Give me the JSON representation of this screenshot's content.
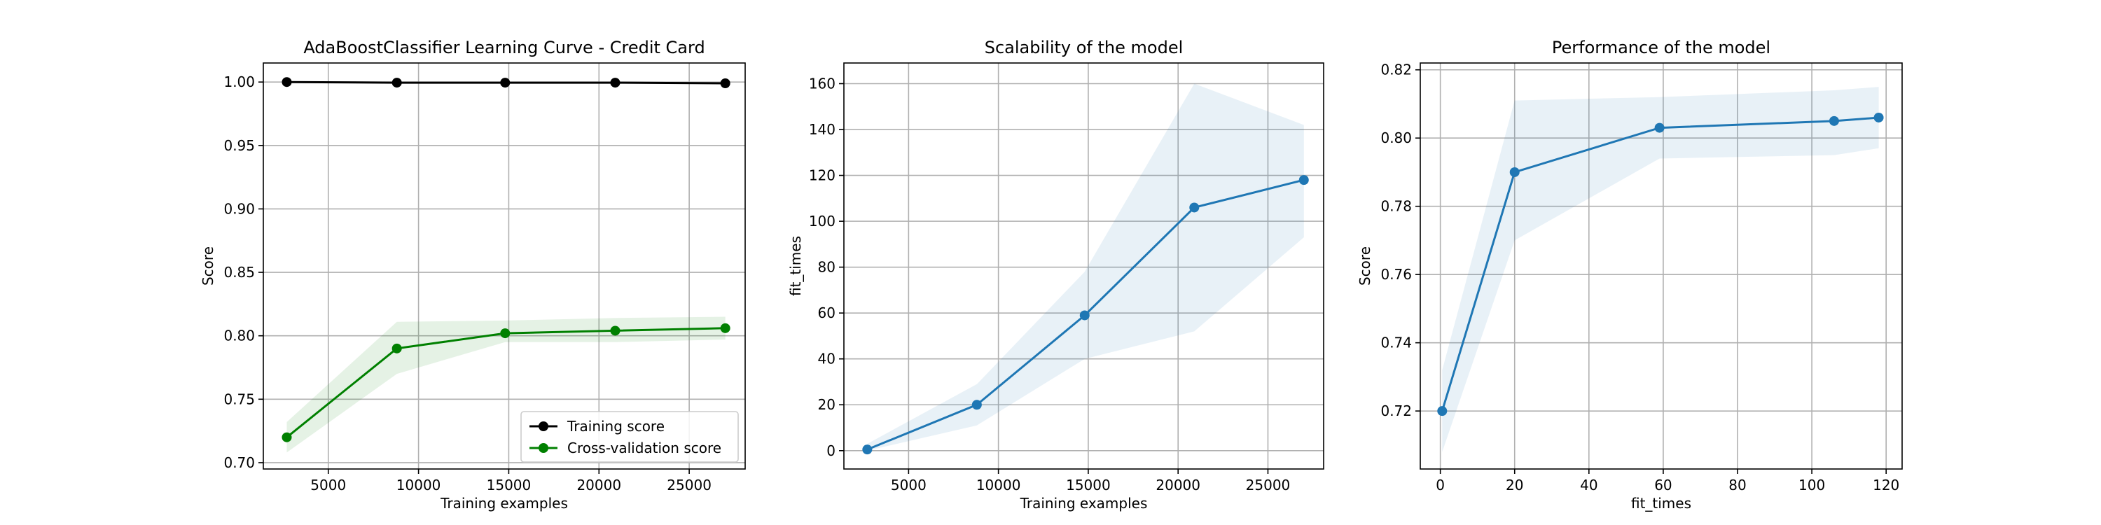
{
  "chart_data": [
    {
      "type": "line",
      "title": "AdaBoostClassifier Learning Curve - Credit Card",
      "xlabel": "Training examples",
      "ylabel": "Score",
      "xlim": [
        1400,
        28100
      ],
      "ylim": [
        0.695,
        1.015
      ],
      "xticks": [
        5000,
        10000,
        15000,
        20000,
        25000
      ],
      "yticks": [
        0.7,
        0.75,
        0.8,
        0.85,
        0.9,
        0.95,
        1.0
      ],
      "ytick_decimals": 2,
      "grid": true,
      "legend_position": "lower-right",
      "x": [
        2700,
        8800,
        14800,
        20900,
        27000
      ],
      "series": [
        {
          "name": "Training score",
          "color": "#000000",
          "values": [
            1.0,
            0.9995,
            0.9995,
            0.9995,
            0.999
          ],
          "band_lower": [
            0.9998,
            0.9993,
            0.9993,
            0.9993,
            0.9988
          ],
          "band_upper": [
            1.0002,
            0.9997,
            0.9997,
            0.9997,
            0.9992
          ],
          "band_color": "#808080"
        },
        {
          "name": "Cross-validation score",
          "color": "#008000",
          "values": [
            0.72,
            0.79,
            0.802,
            0.804,
            0.806
          ],
          "band_lower": [
            0.708,
            0.77,
            0.795,
            0.795,
            0.797
          ],
          "band_upper": [
            0.732,
            0.811,
            0.812,
            0.814,
            0.815
          ],
          "band_color": "#008000"
        }
      ]
    },
    {
      "type": "line",
      "title": "Scalability of the model",
      "xlabel": "Training examples",
      "ylabel": "fit_times",
      "xlim": [
        1400,
        28100
      ],
      "ylim": [
        -8,
        169
      ],
      "xticks": [
        5000,
        10000,
        15000,
        20000,
        25000
      ],
      "yticks": [
        0,
        20,
        40,
        60,
        80,
        100,
        120,
        140,
        160
      ],
      "ytick_decimals": 0,
      "grid": true,
      "x": [
        2700,
        8800,
        14800,
        20900,
        27000
      ],
      "series": [
        {
          "color": "#1f77b4",
          "values": [
            0.5,
            20,
            59,
            106,
            118
          ],
          "band_lower": [
            0,
            11,
            40,
            52,
            93
          ],
          "band_upper": [
            3,
            29,
            78,
            160,
            142
          ],
          "band_color": "#1f77b4"
        }
      ]
    },
    {
      "type": "line",
      "title": "Performance of the model",
      "xlabel": "fit_times",
      "ylabel": "Score",
      "xlim": [
        -5.4,
        124.3
      ],
      "ylim": [
        0.703,
        0.822
      ],
      "xticks": [
        0,
        20,
        40,
        60,
        80,
        100,
        120
      ],
      "yticks": [
        0.72,
        0.74,
        0.76,
        0.78,
        0.8,
        0.82
      ],
      "ytick_decimals": 2,
      "grid": true,
      "x": [
        0.5,
        20,
        59,
        106,
        118
      ],
      "series": [
        {
          "color": "#1f77b4",
          "values": [
            0.72,
            0.79,
            0.803,
            0.805,
            0.806
          ],
          "band_lower": [
            0.708,
            0.77,
            0.794,
            0.795,
            0.797
          ],
          "band_upper": [
            0.732,
            0.811,
            0.812,
            0.814,
            0.815
          ],
          "band_color": "#1f77b4"
        }
      ]
    }
  ]
}
